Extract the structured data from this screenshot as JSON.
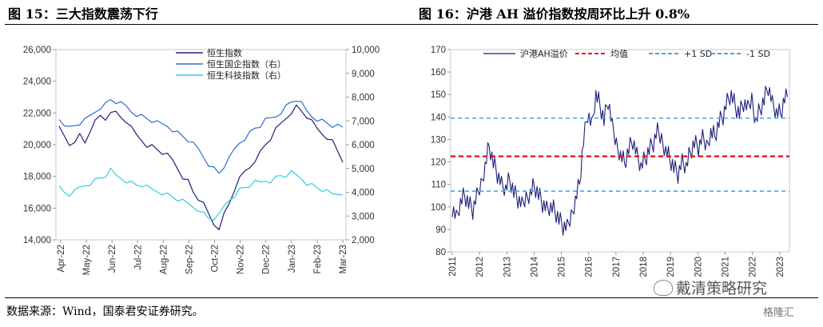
{
  "titles": {
    "left": "图 15：三大指数震荡下行",
    "right": "图 16：沪港 AH 溢价指数按周环比上升 0.8%"
  },
  "footnote": "数据来源：Wind，国泰君安证券研究。",
  "watermark": "戴清策略研究",
  "brand": "格隆汇",
  "chart_data": [
    {
      "type": "line",
      "x_labels": [
        "Apr-22",
        "May-22",
        "Jun-22",
        "Jul-22",
        "Aug-22",
        "Sep-22",
        "Oct-22",
        "Nov-22",
        "Dec-22",
        "Jan-23",
        "Feb-23",
        "Mar-23"
      ],
      "y_left_ticks": [
        "14,000",
        "16,000",
        "18,000",
        "20,000",
        "22,000",
        "24,000",
        "26,000"
      ],
      "y_right_ticks": [
        "2,000",
        "3,000",
        "4,000",
        "5,000",
        "6,000",
        "7,000",
        "8,000",
        "9,000",
        "10,000"
      ],
      "ylim_left": [
        14000,
        26000
      ],
      "ylim_right": [
        2000,
        10000
      ],
      "legend_position": "top-center",
      "series": [
        {
          "name": "恒生指数",
          "axis": "left",
          "color": "#1f1f7a",
          "values": [
            21000,
            20500,
            20000,
            20300,
            20600,
            20100,
            20900,
            21400,
            21800,
            21600,
            22200,
            22000,
            21700,
            21500,
            21000,
            20600,
            20300,
            20000,
            19900,
            19700,
            19500,
            19300,
            19000,
            18500,
            18000,
            17700,
            17000,
            16600,
            16200,
            15600,
            15000,
            14800,
            15600,
            16300,
            17200,
            17800,
            18300,
            18600,
            19100,
            19500,
            20000,
            20400,
            20900,
            21300,
            21700,
            22100,
            22400,
            22100,
            21800,
            21400,
            21000,
            20700,
            20500,
            20200,
            19600,
            19000
          ]
        },
        {
          "name": "恒生国企指数（右）",
          "axis": "right",
          "color": "#2a6fcf",
          "values": [
            7100,
            6900,
            6700,
            6800,
            6900,
            7000,
            7200,
            7400,
            7600,
            7700,
            7900,
            7800,
            7700,
            7600,
            7400,
            7300,
            7200,
            7100,
            7000,
            6900,
            6850,
            6800,
            6650,
            6500,
            6350,
            6200,
            6000,
            5800,
            5500,
            5200,
            5000,
            4800,
            5100,
            5400,
            5800,
            6100,
            6300,
            6500,
            6700,
            6800,
            7000,
            7100,
            7200,
            7400,
            7600,
            7800,
            7900,
            7700,
            7400,
            7200,
            7100,
            7000,
            6900,
            6800,
            6750,
            6700
          ]
        },
        {
          "name": "恒生科技指数（右）",
          "axis": "right",
          "color": "#33cde0",
          "values": [
            4200,
            4000,
            3900,
            4000,
            4200,
            4300,
            4400,
            4500,
            4600,
            4700,
            4900,
            4700,
            4600,
            4500,
            4400,
            4300,
            4300,
            4200,
            4100,
            4050,
            4000,
            3900,
            3800,
            3700,
            3600,
            3500,
            3400,
            3300,
            3100,
            2900,
            2900,
            3000,
            3400,
            3700,
            3900,
            4100,
            4200,
            4300,
            4400,
            4400,
            4500,
            4500,
            4600,
            4700,
            4700,
            4800,
            4700,
            4600,
            4400,
            4300,
            4200,
            4100,
            4000,
            3900,
            3950,
            4000
          ]
        }
      ]
    },
    {
      "type": "line",
      "x_labels": [
        "2011",
        "2012",
        "2013",
        "2014",
        "2015",
        "2016",
        "2017",
        "2018",
        "2019",
        "2020",
        "2021",
        "2022",
        "2023"
      ],
      "y_ticks": [
        "80",
        "90",
        "100",
        "110",
        "120",
        "130",
        "140",
        "150",
        "160",
        "170"
      ],
      "ylim": [
        80,
        170
      ],
      "legend_position": "top",
      "series": [
        {
          "name": "沪港AH溢价",
          "color": "#1f1f7a",
          "values": [
            100,
            95,
            102,
            105,
            101,
            98,
            104,
            110,
            119,
            128,
            120,
            115,
            110,
            108,
            112,
            106,
            103,
            100,
            104,
            107,
            110,
            106,
            102,
            99,
            100,
            98,
            94,
            91,
            90,
            96,
            104,
            111,
            130,
            142,
            136,
            150,
            145,
            138,
            147,
            135,
            128,
            124,
            120,
            126,
            130,
            123,
            118,
            121,
            125,
            128,
            133,
            130,
            126,
            122,
            118,
            115,
            120,
            118,
            124,
            128,
            126,
            130,
            127,
            134,
            132,
            138,
            141,
            147,
            150,
            144,
            141,
            146,
            143,
            148,
            139,
            144,
            148,
            154,
            146,
            142,
            141,
            148
          ]
        },
        {
          "name": "均值",
          "color": "#e0161b",
          "dash": "dashed",
          "value": 122.5
        },
        {
          "name": "+1 SD",
          "color": "#3fa9e8",
          "dash": "dashed",
          "value": 139.5
        },
        {
          "name": "-1 SD",
          "color": "#3fa9e8",
          "dash": "dashed",
          "value": 107
        }
      ]
    }
  ]
}
